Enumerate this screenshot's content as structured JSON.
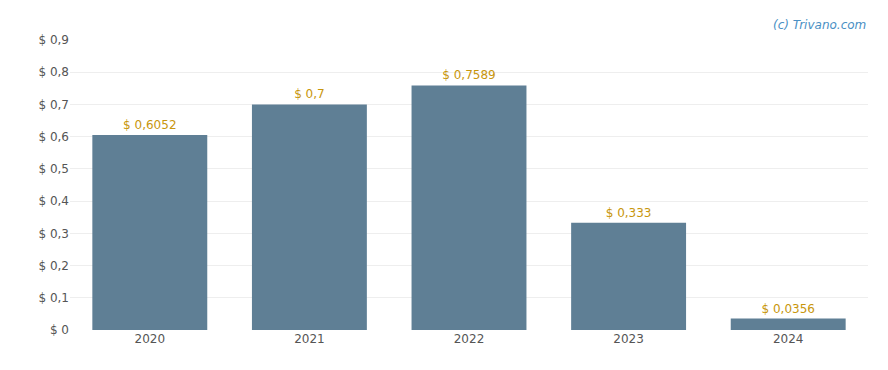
{
  "chart_data": {
    "type": "bar",
    "categories": [
      "2020",
      "2021",
      "2022",
      "2023",
      "2024"
    ],
    "values": [
      0.6052,
      0.7,
      0.7589,
      0.333,
      0.0356
    ],
    "value_labels": [
      "$ 0,6052",
      "$ 0,7",
      "$ 0,7589",
      "$ 0,333",
      "$ 0,0356"
    ],
    "data_labels": true,
    "color": "#5f7f95",
    "ylim": [
      0,
      0.9
    ],
    "yticks": [
      {
        "value": 0,
        "label": "$ 0"
      },
      {
        "value": 0.1,
        "label": "$ 0,1"
      },
      {
        "value": 0.2,
        "label": "$ 0,2"
      },
      {
        "value": 0.3,
        "label": "$ 0,3"
      },
      {
        "value": 0.4,
        "label": "$ 0,4"
      },
      {
        "value": 0.5,
        "label": "$ 0,5"
      },
      {
        "value": 0.6,
        "label": "$ 0,6"
      },
      {
        "value": 0.7,
        "label": "$ 0,7"
      },
      {
        "value": 0.8,
        "label": "$ 0,8"
      },
      {
        "value": 0.9,
        "label": "$ 0,9"
      }
    ],
    "grid": true,
    "annotations": [
      "(c) Trivano.com"
    ]
  }
}
